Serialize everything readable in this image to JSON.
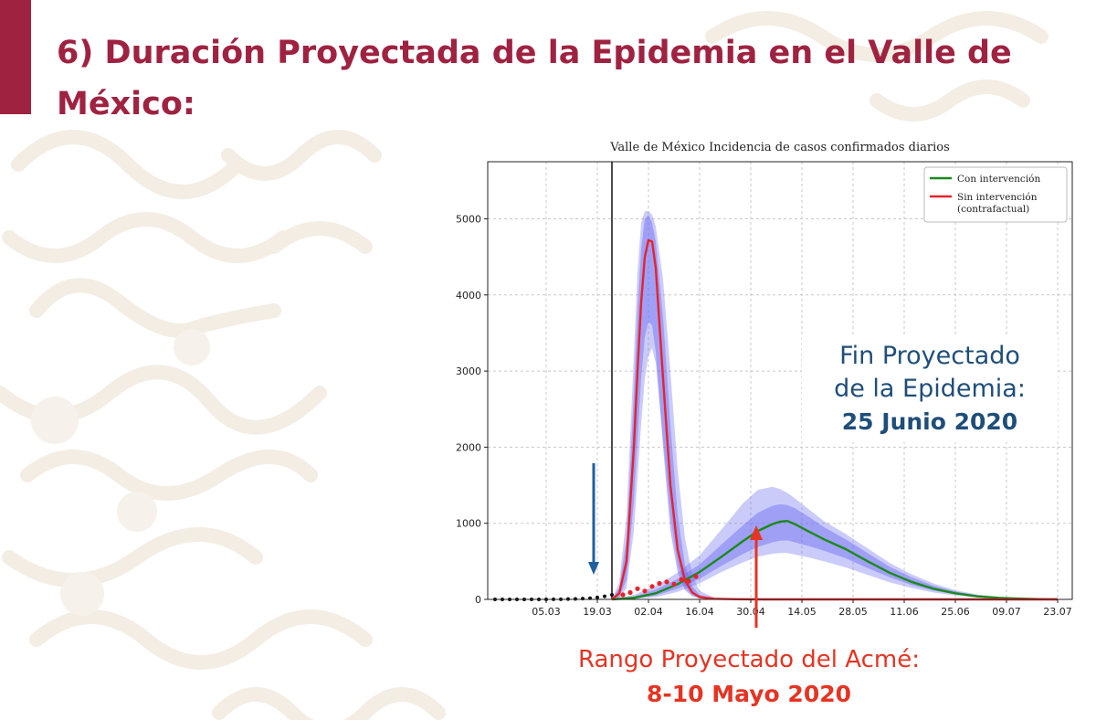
{
  "page": {
    "title": "6) Duración Proyectada de la Epidemia en el Valle de México:",
    "accent_color": "#9f2241"
  },
  "annotations": {
    "epidemic_end_line1": "Fin Proyectado",
    "epidemic_end_line2": "de la Epidemia:",
    "epidemic_end_date": "25 Junio 2020",
    "epidemic_end_color": "#1f4e79",
    "peak_range_label": "Rango Proyectado del Acmé:",
    "peak_range_dates": "8-10 Mayo 2020",
    "peak_range_color": "#e53423"
  },
  "chart_data": {
    "type": "line",
    "title": "Valle de México Incidencia de casos confirmados diarios",
    "xlabel": "",
    "ylabel": "",
    "x_tick_labels": [
      "05.03",
      "19.03",
      "02.04",
      "16.04",
      "30.04",
      "14.05",
      "28.05",
      "11.06",
      "25.06",
      "09.07",
      "23.07"
    ],
    "x_tick_days": [
      64,
      78,
      92,
      106,
      120,
      134,
      148,
      162,
      176,
      190,
      204
    ],
    "xlim": [
      48,
      208
    ],
    "y_ticks": [
      0,
      1000,
      2000,
      3000,
      4000,
      5000
    ],
    "ylim": [
      0,
      5750
    ],
    "grid": true,
    "legend_position": "top-right",
    "intervention_day": 82,
    "series": [
      {
        "name": "Con intervención",
        "color": "#1a8a1a",
        "band_color": "#6a6af2",
        "x": [
          82,
          88,
          94,
          100,
          106,
          112,
          118,
          122,
          126,
          128,
          130,
          132,
          136,
          140,
          146,
          152,
          158,
          164,
          170,
          176,
          182,
          188,
          194,
          200,
          204
        ],
        "y": [
          0,
          20,
          80,
          200,
          360,
          560,
          770,
          900,
          990,
          1020,
          1030,
          990,
          890,
          790,
          660,
          500,
          350,
          230,
          140,
          80,
          40,
          20,
          10,
          3,
          1
        ],
        "inner_low": [
          0,
          10,
          50,
          140,
          270,
          440,
          600,
          690,
          750,
          770,
          775,
          750,
          700,
          640,
          540,
          410,
          290,
          190,
          115,
          65,
          33,
          16,
          8,
          2,
          0
        ],
        "inner_high": [
          0,
          40,
          130,
          270,
          460,
          720,
          980,
          1140,
          1230,
          1250,
          1240,
          1200,
          1080,
          950,
          790,
          610,
          430,
          290,
          180,
          105,
          55,
          28,
          13,
          4,
          1
        ],
        "outer_low": [
          0,
          5,
          30,
          100,
          210,
          360,
          490,
          560,
          600,
          610,
          610,
          590,
          550,
          500,
          420,
          320,
          225,
          150,
          90,
          50,
          25,
          12,
          5,
          1,
          0
        ],
        "outer_high": [
          0,
          60,
          180,
          350,
          580,
          920,
          1270,
          1440,
          1480,
          1450,
          1400,
          1330,
          1180,
          1030,
          860,
          670,
          480,
          330,
          210,
          120,
          65,
          32,
          15,
          5,
          1
        ]
      },
      {
        "name": "Sin intervención\n(contrafactual)",
        "color": "#e8232a",
        "band_color": "#6a6af2",
        "x": [
          82,
          84,
          86,
          88,
          89,
          90,
          91,
          92,
          93,
          94,
          96,
          98,
          100,
          102,
          104,
          106,
          110,
          116,
          124,
          140,
          160,
          204
        ],
        "y": [
          0,
          80,
          500,
          2000,
          3000,
          3900,
          4500,
          4720,
          4700,
          4350,
          2900,
          1500,
          650,
          250,
          90,
          30,
          8,
          2,
          0,
          0,
          0,
          0
        ],
        "inner_low": [
          0,
          30,
          260,
          1300,
          2100,
          2900,
          3450,
          3650,
          3600,
          3250,
          2000,
          900,
          350,
          120,
          40,
          12,
          3,
          1,
          0,
          0,
          0,
          0
        ],
        "inner_high": [
          0,
          150,
          800,
          2700,
          3800,
          4600,
          5000,
          5050,
          4950,
          4700,
          3700,
          2300,
          1100,
          450,
          170,
          60,
          15,
          4,
          1,
          0,
          0,
          0
        ],
        "outer_low": [
          0,
          10,
          150,
          900,
          1600,
          2300,
          2900,
          3200,
          3300,
          3100,
          2100,
          1100,
          450,
          160,
          55,
          18,
          5,
          1,
          0,
          0,
          0,
          0
        ],
        "outer_high": [
          0,
          220,
          1100,
          3200,
          4300,
          4950,
          5100,
          5100,
          5050,
          4900,
          4200,
          3000,
          1700,
          800,
          320,
          110,
          25,
          6,
          1,
          0,
          0,
          0
        ]
      }
    ],
    "observed_points": {
      "name": "observed",
      "x": [
        50,
        52,
        54,
        56,
        58,
        60,
        62,
        64,
        66,
        68,
        70,
        72,
        74,
        76,
        78,
        80,
        82
      ],
      "y": [
        0,
        0,
        0,
        0,
        0,
        0,
        0,
        0,
        1,
        2,
        4,
        6,
        10,
        15,
        25,
        40,
        60
      ]
    },
    "observed_red_points": {
      "x": [
        85,
        87,
        89,
        91,
        93,
        95,
        97,
        99,
        101,
        103,
        105
      ],
      "y": [
        60,
        90,
        140,
        110,
        170,
        210,
        230,
        200,
        260,
        240,
        300
      ]
    }
  }
}
